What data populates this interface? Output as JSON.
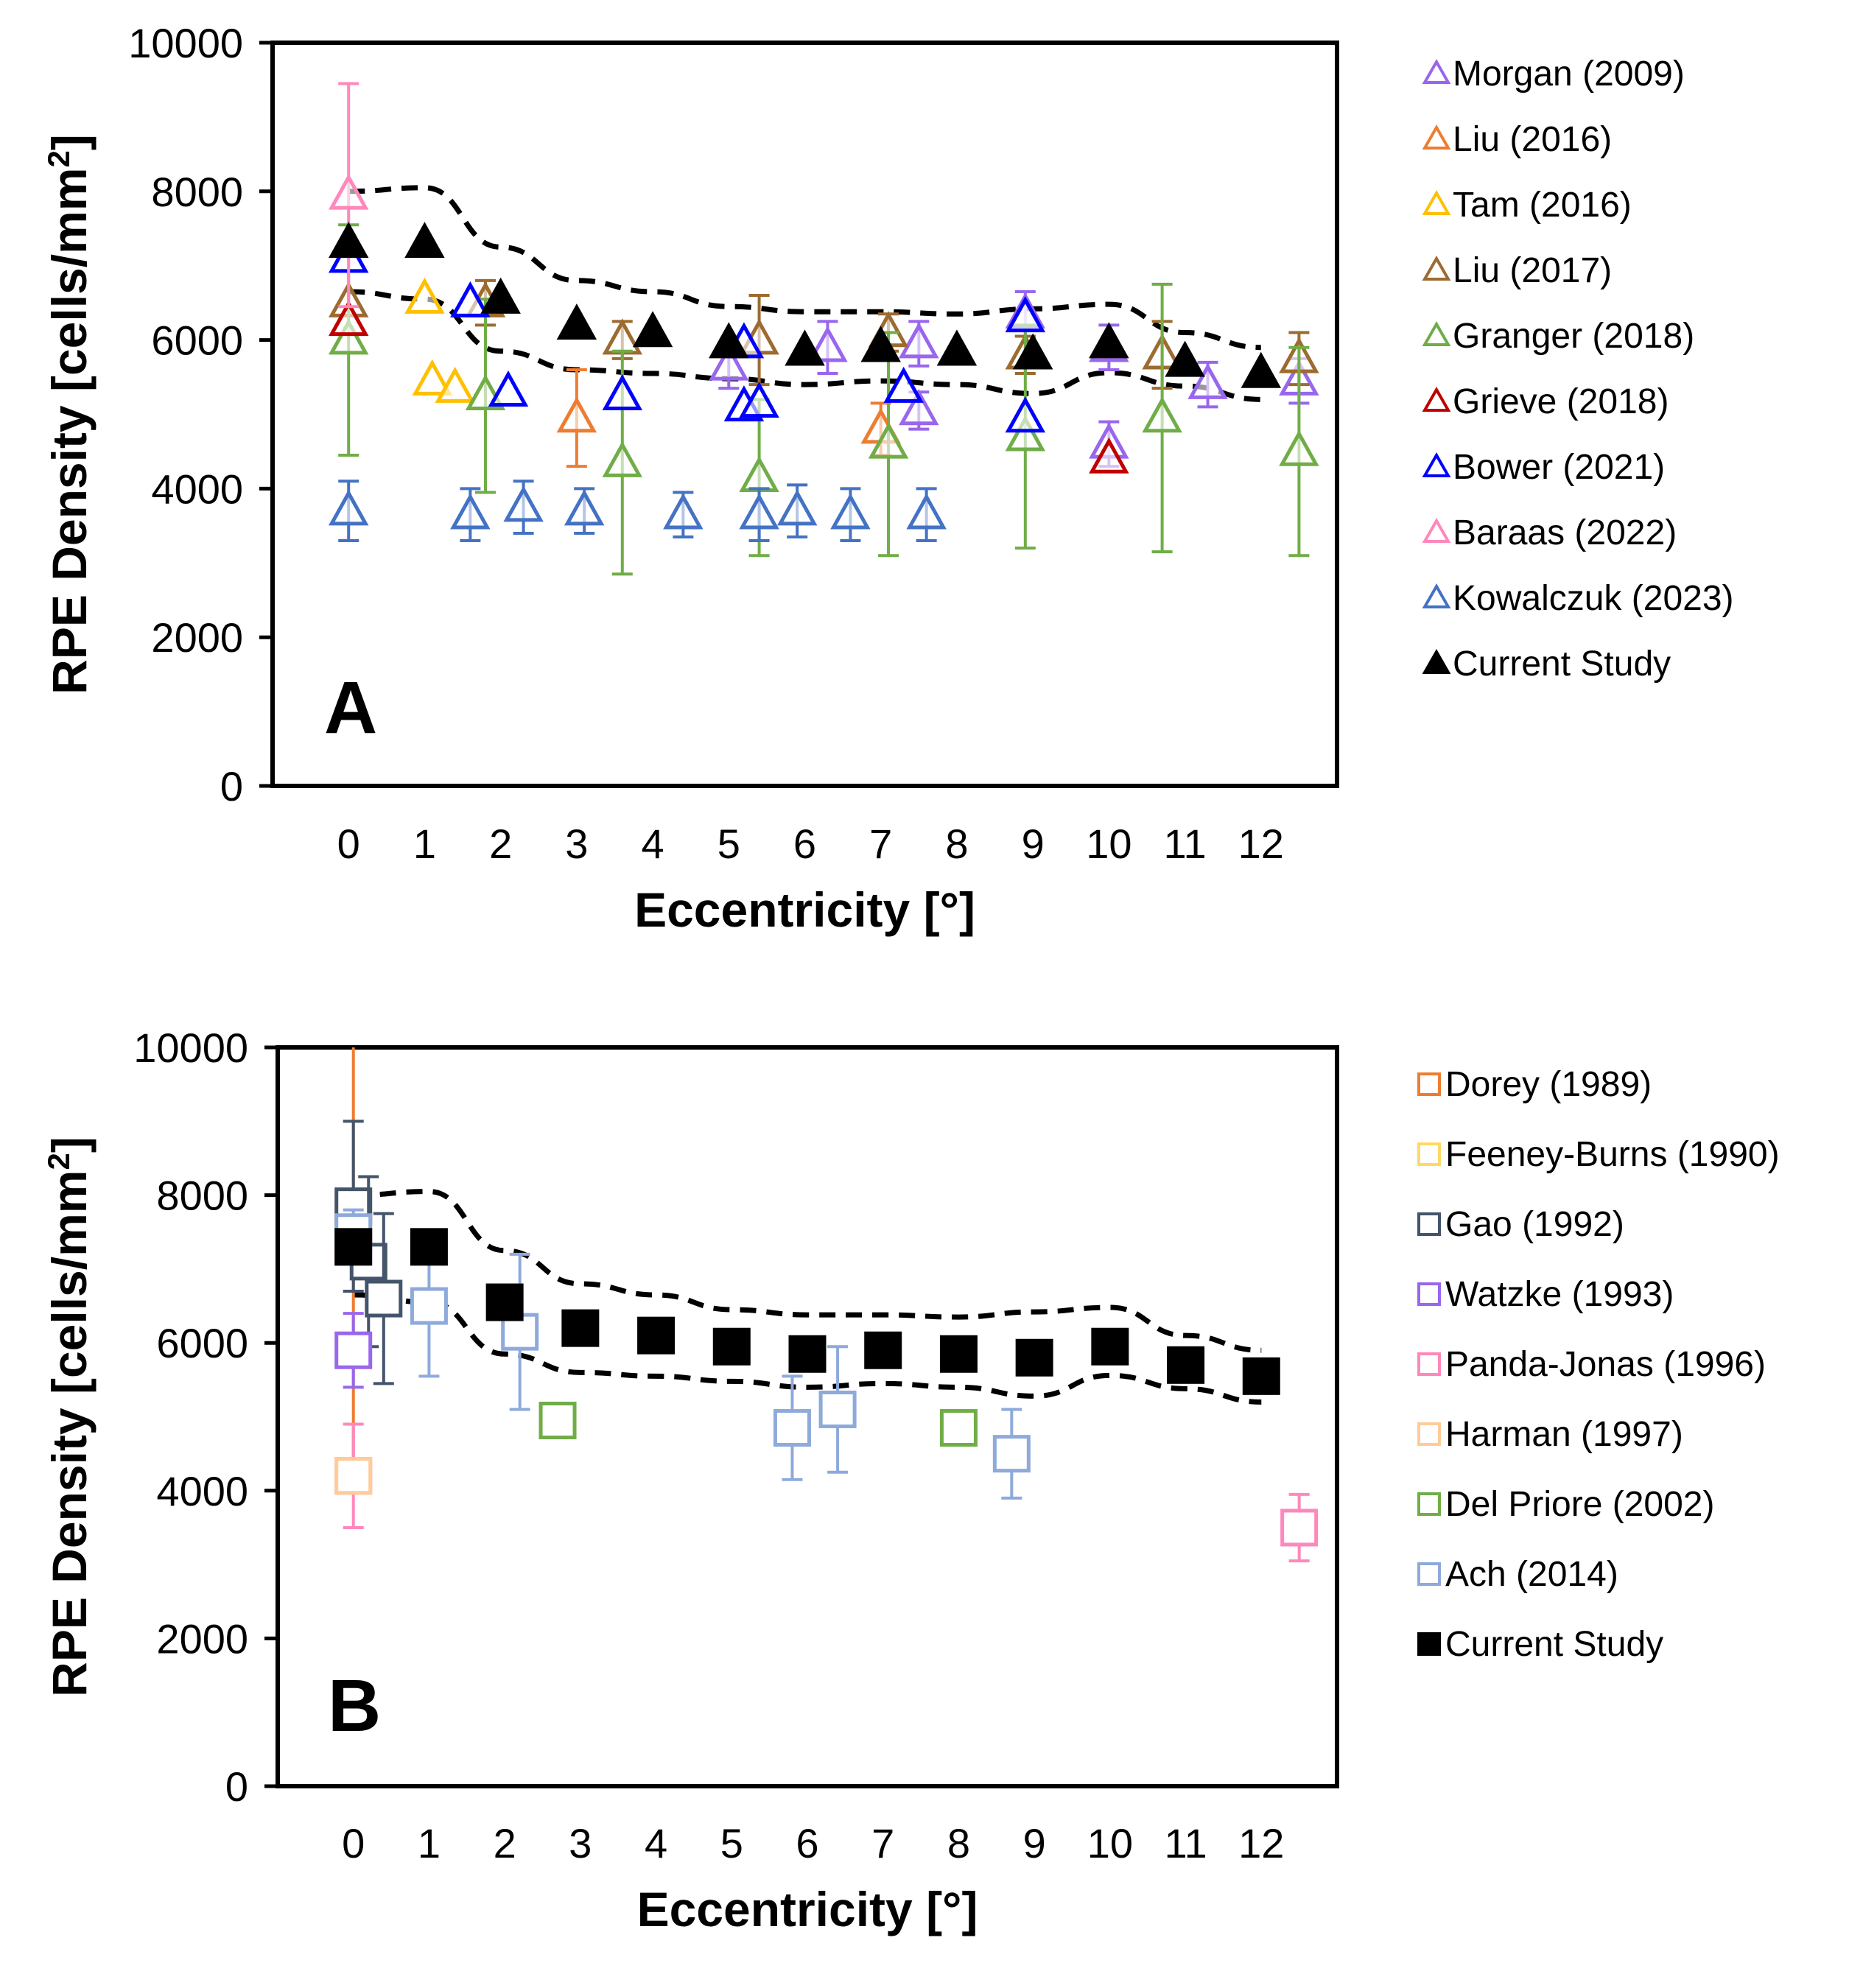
{
  "chart_data": [
    {
      "type": "scatter",
      "panel_label": "A",
      "xlabel": "Eccentricity [°]",
      "ylabel": "RPE Density [cells/mm",
      "ylabel_sup": "2",
      "ylabel_end": "]",
      "xlim": [
        -1,
        13
      ],
      "ylim": [
        0,
        10000
      ],
      "xticks": [
        "0",
        "1",
        "2",
        "3",
        "4",
        "5",
        "6",
        "7",
        "8",
        "9",
        "10",
        "11",
        "12"
      ],
      "yticks": [
        "0",
        "2000",
        "4000",
        "6000",
        "8000",
        "10000"
      ],
      "marker": "triangle",
      "series": [
        {
          "name": "Morgan (2009)",
          "color": "#9966ee",
          "points": [
            [
              5,
              5650,
              300
            ],
            [
              6.3,
              5900,
              350
            ],
            [
              7.5,
              5950,
              300
            ],
            [
              7.5,
              5050,
              250
            ],
            [
              8.9,
              6350,
              300
            ],
            [
              10,
              5900,
              300
            ],
            [
              10,
              4600,
              300
            ],
            [
              11.3,
              5400,
              300
            ],
            [
              12.5,
              5450,
              300
            ]
          ]
        },
        {
          "name": "Liu (2016)",
          "color": "#ed7d31",
          "points": [
            [
              3,
              4950,
              650
            ],
            [
              7,
              4800,
              350
            ]
          ]
        },
        {
          "name": "Tam (2016)",
          "color": "#ffc000",
          "points": [
            [
              1,
              6550,
              0
            ],
            [
              1.1,
              5450,
              0
            ],
            [
              1.4,
              5350,
              0
            ]
          ]
        },
        {
          "name": "Liu (2017)",
          "color": "#9c6b30",
          "points": [
            [
              0,
              6500,
              0
            ],
            [
              1.8,
              6500,
              300
            ],
            [
              3.6,
              6000,
              250
            ],
            [
              5.4,
              6000,
              600
            ],
            [
              7.1,
              6100,
              250
            ],
            [
              8.9,
              5800,
              250
            ],
            [
              10.7,
              5800,
              450
            ],
            [
              12.5,
              5750,
              350
            ]
          ]
        },
        {
          "name": "Granger (2018)",
          "color": "#70ad47",
          "points": [
            [
              0,
              6000,
              1550
            ],
            [
              1.8,
              5250,
              1300
            ],
            [
              3.6,
              4350,
              1500
            ],
            [
              5.4,
              4150,
              1050
            ],
            [
              7.1,
              4600,
              1500
            ],
            [
              8.9,
              4700,
              1500
            ],
            [
              10.7,
              4950,
              1800
            ],
            [
              12.5,
              4500,
              1400
            ]
          ]
        },
        {
          "name": "Grieve (2018)",
          "color": "#c00000",
          "points": [
            [
              0,
              6250,
              0
            ],
            [
              10,
              4400,
              0
            ]
          ]
        },
        {
          "name": "Bower (2021)",
          "color": "#0000ff",
          "points": [
            [
              0,
              7100,
              0
            ],
            [
              1.6,
              6500,
              0
            ],
            [
              2.1,
              5300,
              0
            ],
            [
              3.6,
              5250,
              0
            ],
            [
              5.2,
              5950,
              0
            ],
            [
              5.2,
              5100,
              0
            ],
            [
              5.4,
              5150,
              0
            ],
            [
              7.3,
              5350,
              0
            ],
            [
              8.9,
              6300,
              0
            ],
            [
              8.9,
              4950,
              0
            ]
          ]
        },
        {
          "name": "Baraas (2022)",
          "color": "#ff88bb",
          "points": [
            [
              0,
              7950,
              1500
            ]
          ]
        },
        {
          "name": "Kowalczuk (2023)",
          "color": "#4472c4",
          "points": [
            [
              0,
              3700,
              400
            ],
            [
              1.6,
              3650,
              350
            ],
            [
              2.3,
              3750,
              350
            ],
            [
              3.1,
              3700,
              300
            ],
            [
              4.4,
              3650,
              300
            ],
            [
              5.4,
              3650,
              350
            ],
            [
              5.9,
              3700,
              350
            ],
            [
              6.6,
              3650,
              350
            ],
            [
              7.6,
              3650,
              350
            ]
          ]
        },
        {
          "name": "Current Study",
          "color": "#000000",
          "filled": true,
          "points": [
            [
              0,
              7300,
              0
            ],
            [
              1,
              7300,
              0
            ],
            [
              2,
              6550,
              0
            ],
            [
              3,
              6200,
              0
            ],
            [
              4,
              6100,
              0
            ],
            [
              5,
              5950,
              0
            ],
            [
              6,
              5850,
              0
            ],
            [
              7,
              5900,
              0
            ],
            [
              8,
              5850,
              0
            ],
            [
              9,
              5800,
              0
            ],
            [
              10,
              5950,
              0
            ],
            [
              11,
              5700,
              0
            ],
            [
              12,
              5550,
              0
            ]
          ]
        }
      ],
      "bounds": {
        "upper": [
          [
            0,
            8000
          ],
          [
            1,
            8050
          ],
          [
            2,
            7250
          ],
          [
            3,
            6800
          ],
          [
            4,
            6650
          ],
          [
            5,
            6450
          ],
          [
            6,
            6380
          ],
          [
            7,
            6380
          ],
          [
            8,
            6350
          ],
          [
            9,
            6420
          ],
          [
            10,
            6480
          ],
          [
            11,
            6100
          ],
          [
            12,
            5900
          ]
        ],
        "lower": [
          [
            0,
            6650
          ],
          [
            1,
            6550
          ],
          [
            2,
            5850
          ],
          [
            3,
            5600
          ],
          [
            4,
            5550
          ],
          [
            5,
            5480
          ],
          [
            6,
            5400
          ],
          [
            7,
            5450
          ],
          [
            8,
            5400
          ],
          [
            9,
            5280
          ],
          [
            10,
            5560
          ],
          [
            11,
            5380
          ],
          [
            12,
            5200
          ]
        ]
      }
    },
    {
      "type": "scatter",
      "panel_label": "B",
      "xlabel": "Eccentricity [°]",
      "ylabel": "RPE Density [cells/mm",
      "ylabel_sup": "2",
      "ylabel_end": "]",
      "xlim": [
        -1,
        13
      ],
      "ylim": [
        0,
        10000
      ],
      "xticks": [
        "0",
        "1",
        "2",
        "3",
        "4",
        "5",
        "6",
        "7",
        "8",
        "9",
        "10",
        "11",
        "12"
      ],
      "yticks": [
        "0",
        "2000",
        "4000",
        "6000",
        "8000",
        "10000"
      ],
      "marker": "square",
      "series": [
        {
          "name": "Dorey (1989)",
          "color": "#ed7d31",
          "points": [
            [
              0,
              7300,
              2900
            ]
          ]
        },
        {
          "name": "Feeney-Burns (1990)",
          "color": "#ffd966",
          "points": [
            [
              0,
              7550,
              200
            ]
          ]
        },
        {
          "name": "Gao (1992)",
          "color": "#44546a",
          "points": [
            [
              0,
              7850,
              1150
            ],
            [
              0.2,
              7100,
              1150
            ],
            [
              0.4,
              6600,
              1150
            ]
          ]
        },
        {
          "name": "Watzke (1993)",
          "color": "#9966ee",
          "points": [
            [
              0,
              5900,
              500
            ]
          ]
        },
        {
          "name": "Panda-Jonas (1996)",
          "color": "#ff88bb",
          "points": [
            [
              0,
              4200,
              700
            ],
            [
              12.5,
              3500,
              450
            ]
          ]
        },
        {
          "name": "Harman (1997)",
          "color": "#ffcc99",
          "points": [
            [
              0,
              4200,
              0
            ]
          ]
        },
        {
          "name": "Del Priore (2002)",
          "color": "#70ad47",
          "points": [
            [
              2.7,
              4950,
              200
            ],
            [
              8,
              4850,
              200
            ]
          ]
        },
        {
          "name": "Ach (2014)",
          "color": "#8eaadb",
          "points": [
            [
              0,
              7500,
              300
            ],
            [
              1,
              6500,
              950
            ],
            [
              2.2,
              6150,
              1050
            ],
            [
              5.8,
              4850,
              700
            ],
            [
              6.4,
              5100,
              850
            ],
            [
              8.7,
              4500,
              600
            ]
          ]
        },
        {
          "name": "Current Study",
          "color": "#000000",
          "filled": true,
          "points": [
            [
              0,
              7300,
              0
            ],
            [
              1,
              7300,
              0
            ],
            [
              2,
              6550,
              0
            ],
            [
              3,
              6200,
              0
            ],
            [
              4,
              6100,
              0
            ],
            [
              5,
              5950,
              0
            ],
            [
              6,
              5850,
              0
            ],
            [
              7,
              5900,
              0
            ],
            [
              8,
              5850,
              0
            ],
            [
              9,
              5800,
              0
            ],
            [
              10,
              5950,
              0
            ],
            [
              11,
              5700,
              0
            ],
            [
              12,
              5550,
              0
            ]
          ]
        }
      ],
      "bounds": {
        "upper": [
          [
            0,
            8000
          ],
          [
            1,
            8050
          ],
          [
            2,
            7250
          ],
          [
            3,
            6800
          ],
          [
            4,
            6650
          ],
          [
            5,
            6450
          ],
          [
            6,
            6380
          ],
          [
            7,
            6380
          ],
          [
            8,
            6350
          ],
          [
            9,
            6420
          ],
          [
            10,
            6480
          ],
          [
            11,
            6100
          ],
          [
            12,
            5900
          ]
        ],
        "lower": [
          [
            0,
            6650
          ],
          [
            1,
            6550
          ],
          [
            2,
            5850
          ],
          [
            3,
            5600
          ],
          [
            4,
            5550
          ],
          [
            5,
            5480
          ],
          [
            6,
            5400
          ],
          [
            7,
            5450
          ],
          [
            8,
            5400
          ],
          [
            9,
            5280
          ],
          [
            10,
            5560
          ],
          [
            11,
            5380
          ],
          [
            12,
            5200
          ]
        ]
      }
    }
  ]
}
